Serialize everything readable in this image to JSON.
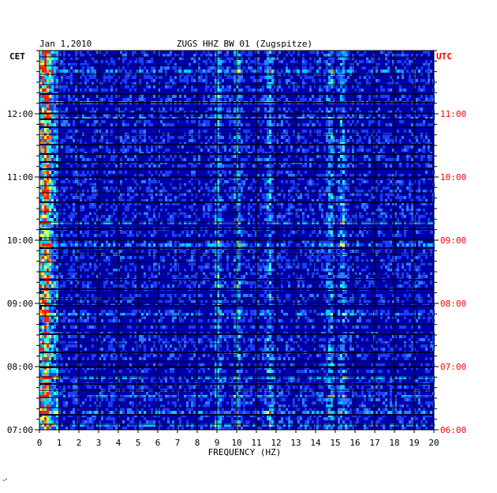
{
  "chart_data": {
    "type": "heatmap",
    "title_left": "Jan 1,2010",
    "title_center": "ZUGS HHZ BW 01 (Zugspitze)",
    "left_axis_label": "CET",
    "right_axis_label": "UTC",
    "xlabel": "FREQUENCY (HZ)",
    "xlim": [
      0,
      20
    ],
    "x_ticks": [
      "0",
      "1",
      "2",
      "3",
      "4",
      "5",
      "6",
      "7",
      "8",
      "9",
      "10",
      "11",
      "12",
      "13",
      "14",
      "15",
      "16",
      "17",
      "18",
      "19",
      "20"
    ],
    "y_ticks_cet": [
      "12:00",
      "11:00",
      "10:00",
      "09:00",
      "08:00",
      "07:00"
    ],
    "y_ticks_utc": [
      "11:00",
      "10:00",
      "09:00",
      "08:00",
      "07:00",
      "06:00"
    ],
    "time_range_cet": [
      "07:00",
      "13:00"
    ],
    "dominant_frequency_bands_hz": [
      0.3,
      9.0,
      10.0,
      11.6,
      14.7,
      15.3
    ],
    "colors": {
      "background": "#0000a8",
      "low": "#1a3cff",
      "mid": "#00d0ff",
      "high": "#ffff40",
      "peak": "#ff2000",
      "grid": "#000000",
      "utc_text": "#ff0000"
    }
  },
  "footer_mark": "\"˚"
}
